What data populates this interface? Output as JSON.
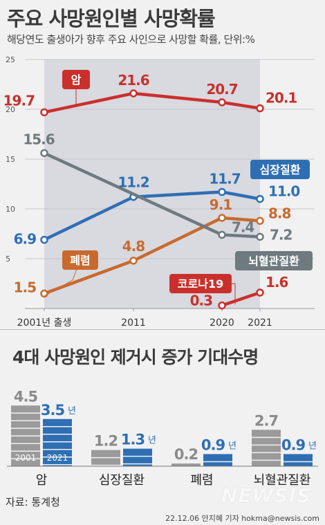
{
  "title": "주요 사망원인별 사망확률",
  "subtitle": "해당연도 출생아가 향후 주요 사인으로 사망할 확률, 단위:%",
  "title2": "4대 사망원인 제거시 증가 기대수명",
  "source": "자료: 통계청",
  "credit": "22.12.06 안지혜 기자 hokma@newsis.com",
  "watermark": "NEWSIS",
  "colors": {
    "cancer": "#c9302c",
    "heart": "#2e6fb4",
    "pneumonia": "#c86a2e",
    "cerebro": "#6e7a7e",
    "gray_bar": "#9a9a9a"
  },
  "chart_data": [
    {
      "type": "line",
      "title": "주요 사망원인별 사망확률",
      "subtitle": "해당연도 출생아가 향후 주요 사인으로 사망할 확률, 단위:%",
      "x": [
        2001,
        2011,
        2020,
        2021
      ],
      "x_tick_labels": [
        "2001년 출생",
        "2011",
        "2020",
        "2021"
      ],
      "y_ticks": [
        5,
        10,
        15,
        20,
        25
      ],
      "ylim": [
        0,
        25
      ],
      "grid": true,
      "series": [
        {
          "name": "암",
          "color": "#c9302c",
          "values": [
            19.7,
            21.6,
            20.7,
            20.1
          ],
          "labels": [
            "19.7",
            "21.6",
            "20.7",
            "20.1"
          ]
        },
        {
          "name": "심장질환",
          "color": "#2e6fb4",
          "values": [
            6.9,
            11.2,
            11.7,
            11.0
          ],
          "labels": [
            "6.9",
            "11.2",
            "11.7",
            "11.0"
          ]
        },
        {
          "name": "폐렴",
          "color": "#c86a2e",
          "values": [
            1.5,
            4.8,
            9.1,
            8.8
          ],
          "labels": [
            "1.5",
            "4.8",
            "9.1",
            "8.8"
          ]
        },
        {
          "name": "뇌혈관질환",
          "color": "#6e7a7e",
          "values": [
            15.6,
            null,
            7.4,
            7.2
          ],
          "labels": [
            "15.6",
            "",
            "7.4",
            "7.2"
          ]
        },
        {
          "name": "코로나19",
          "color": "#c9302c",
          "values": [
            null,
            null,
            0.3,
            1.6
          ],
          "labels": [
            "",
            "",
            "0.3",
            "1.6"
          ]
        }
      ]
    },
    {
      "type": "bar",
      "title": "4대 사망원인 제거시 증가 기대수명",
      "categories": [
        "암",
        "심장질환",
        "폐렴",
        "뇌혈관질환"
      ],
      "unit": "년",
      "series": [
        {
          "name": "2001",
          "color": "#9a9a9a",
          "values": [
            4.5,
            1.2,
            0.2,
            2.7
          ]
        },
        {
          "name": "2021",
          "color": "#2e6fb4",
          "values": [
            3.5,
            1.3,
            0.9,
            0.9
          ]
        }
      ]
    }
  ]
}
